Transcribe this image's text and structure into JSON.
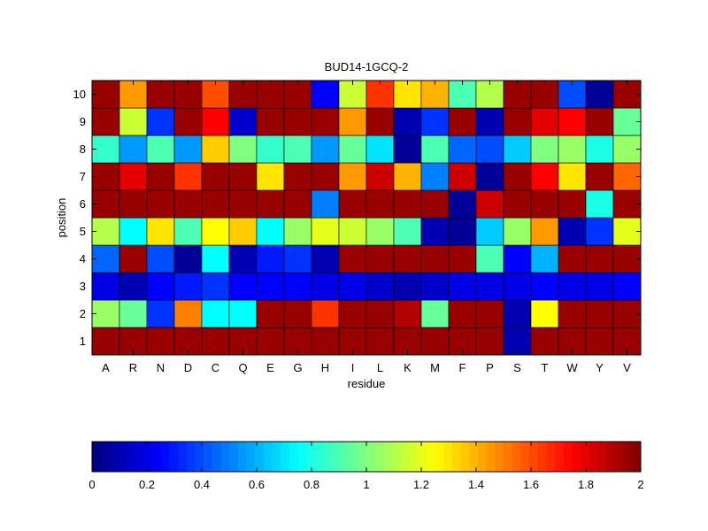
{
  "chart_data": {
    "type": "heatmap",
    "title": "BUD14-1GCQ-2",
    "xlabel": "residue",
    "ylabel": "position",
    "x_categories": [
      "A",
      "R",
      "N",
      "D",
      "C",
      "Q",
      "E",
      "G",
      "H",
      "I",
      "L",
      "K",
      "M",
      "F",
      "P",
      "S",
      "T",
      "W",
      "Y",
      "V"
    ],
    "y_categories": [
      "1",
      "2",
      "3",
      "4",
      "5",
      "6",
      "7",
      "8",
      "9",
      "10"
    ],
    "color_range": [
      0,
      2
    ],
    "colormap": "jet",
    "colorbar_ticks": [
      "0",
      "0.2",
      "0.4",
      "0.6",
      "0.8",
      "1",
      "1.2",
      "1.4",
      "1.6",
      "1.8",
      "2"
    ],
    "values": {
      "1": [
        1.95,
        1.95,
        1.95,
        1.95,
        1.95,
        1.95,
        1.95,
        1.95,
        1.95,
        1.95,
        1.95,
        1.95,
        1.95,
        1.95,
        1.95,
        0.1,
        1.95,
        1.95,
        1.95,
        1.95
      ],
      "2": [
        1.05,
        0.95,
        0.35,
        1.5,
        0.75,
        0.75,
        1.95,
        1.95,
        1.65,
        1.95,
        1.95,
        1.9,
        0.95,
        1.95,
        1.95,
        0.1,
        1.25,
        1.95,
        1.95,
        1.95
      ],
      "3": [
        0.2,
        0.1,
        0.25,
        0.3,
        0.35,
        0.25,
        0.25,
        0.25,
        0.2,
        0.2,
        0.15,
        0.1,
        0.15,
        0.2,
        0.2,
        0.2,
        0.25,
        0.2,
        0.2,
        0.25
      ],
      "4": [
        0.45,
        1.95,
        0.4,
        0.05,
        0.75,
        0.1,
        0.3,
        0.35,
        0.1,
        1.95,
        1.95,
        1.95,
        1.95,
        1.95,
        0.9,
        0.25,
        0.6,
        1.95,
        1.95,
        1.95
      ],
      "5": [
        1.1,
        0.75,
        1.3,
        0.9,
        1.25,
        1.35,
        0.75,
        1.05,
        1.2,
        1.15,
        1.05,
        0.9,
        0.1,
        0.05,
        0.65,
        1.05,
        1.45,
        0.1,
        0.35,
        1.2
      ],
      "6": [
        1.95,
        1.95,
        1.95,
        1.95,
        1.95,
        1.95,
        1.95,
        1.95,
        0.5,
        1.95,
        1.95,
        1.95,
        1.95,
        0.05,
        1.85,
        1.95,
        1.95,
        1.95,
        0.8,
        1.95
      ],
      "7": [
        1.95,
        1.8,
        1.95,
        1.65,
        1.95,
        1.95,
        1.3,
        1.95,
        1.95,
        1.45,
        1.85,
        1.4,
        0.5,
        1.85,
        0.05,
        1.95,
        1.75,
        1.3,
        1.95,
        1.55
      ],
      "8": [
        0.85,
        0.55,
        0.9,
        0.55,
        1.35,
        1.0,
        0.85,
        0.9,
        0.55,
        0.95,
        0.7,
        0.05,
        0.9,
        0.45,
        0.4,
        0.65,
        1.0,
        1.05,
        0.8,
        1.05
      ],
      "9": [
        1.95,
        1.15,
        0.35,
        1.95,
        1.75,
        0.15,
        1.95,
        1.95,
        1.95,
        1.45,
        1.95,
        0.1,
        0.35,
        1.95,
        0.1,
        1.95,
        1.8,
        1.75,
        1.95,
        0.95
      ],
      "10": [
        1.95,
        1.45,
        1.95,
        1.95,
        1.6,
        1.95,
        1.95,
        1.95,
        0.25,
        1.15,
        1.65,
        1.3,
        1.4,
        0.9,
        1.1,
        1.95,
        1.95,
        0.4,
        0.05,
        1.95
      ]
    }
  }
}
